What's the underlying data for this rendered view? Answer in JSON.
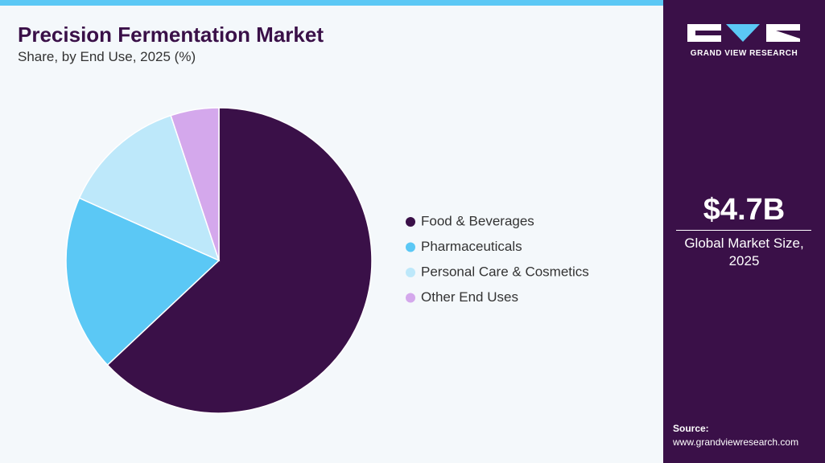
{
  "chart_data": {
    "type": "pie",
    "title": "Precision Fermentation Market",
    "subtitle": "Share, by End Use, 2025 (%)",
    "categories": [
      "Food & Beverages",
      "Pharmaceuticals",
      "Personal Care & Cosmetics",
      "Other End Uses"
    ],
    "values": [
      63,
      18.7,
      13.2,
      5.1
    ],
    "colors": [
      "#3a1048",
      "#5bc8f5",
      "#bde8fa",
      "#d4a8ec"
    ],
    "legend": "right"
  },
  "sidebar": {
    "brand": "GRAND VIEW RESEARCH",
    "market_size": "$4.7B",
    "market_size_label": "Global Market Size, 2025",
    "source_label": "Source:",
    "source_url": "www.grandviewresearch.com"
  }
}
